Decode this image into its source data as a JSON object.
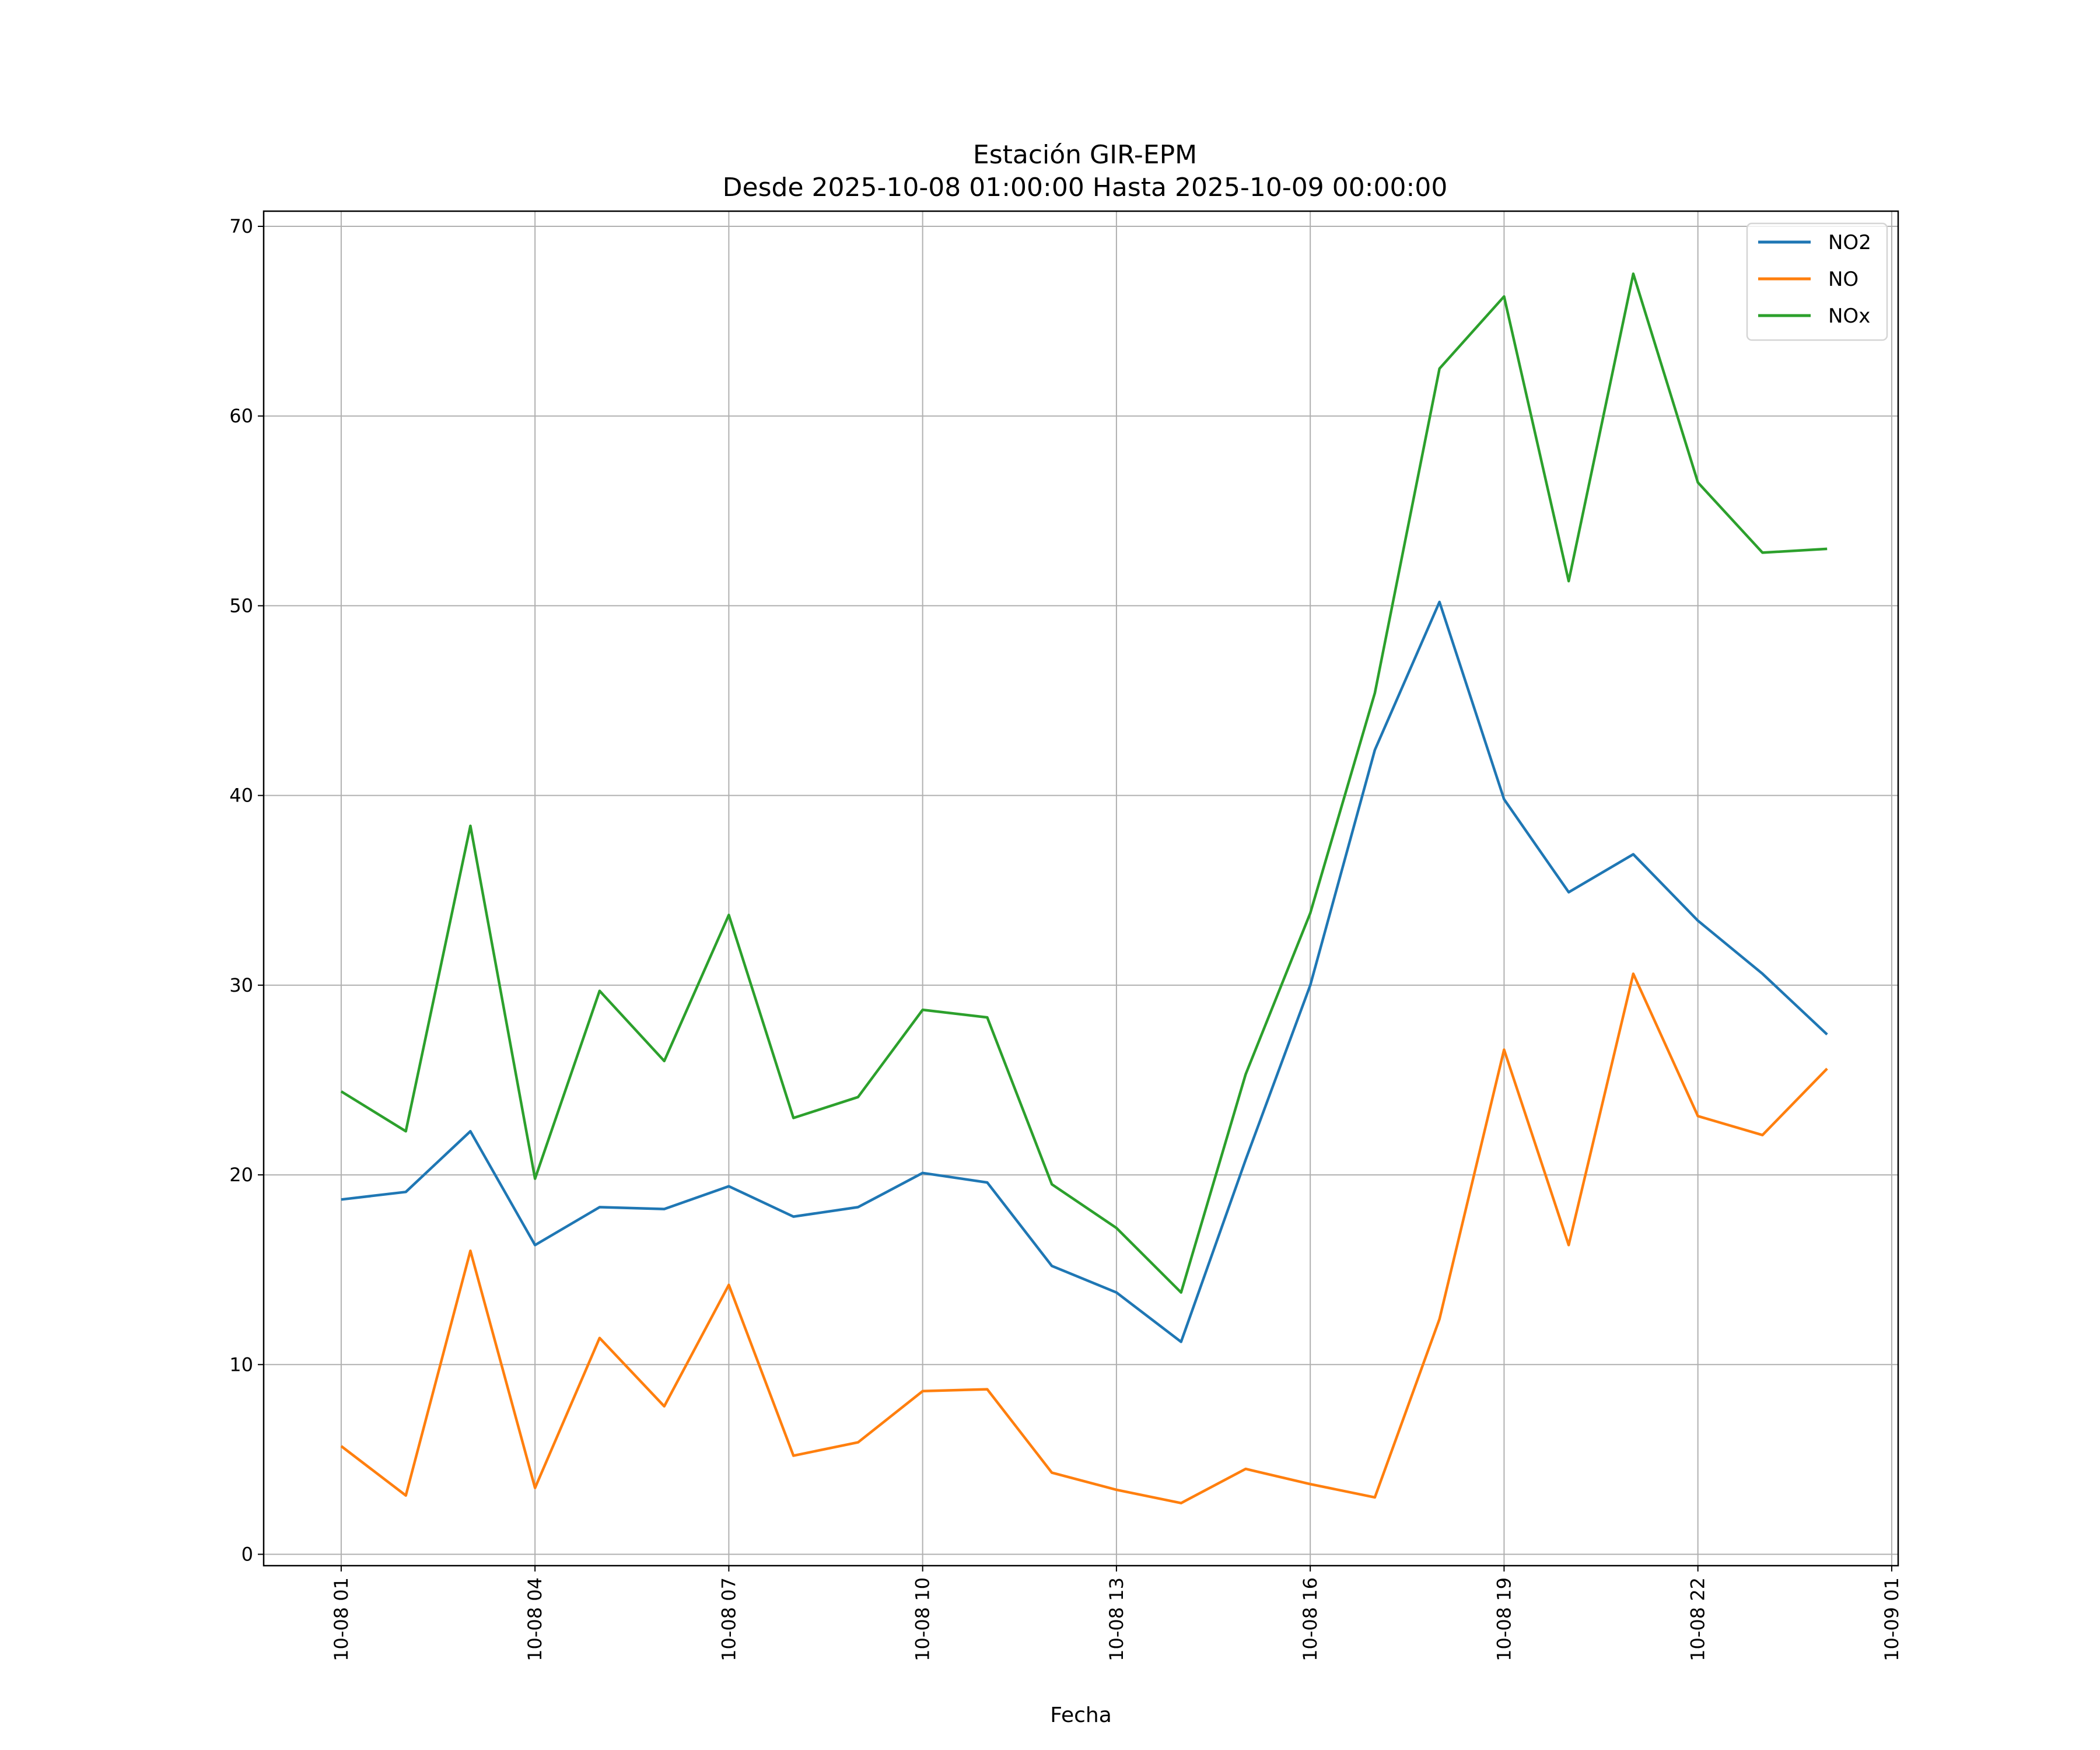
{
  "chart_data": {
    "type": "line",
    "title": "Estación GIR-EPM",
    "subtitle": "Desde 2025-10-08 01:00:00 Hasta 2025-10-09 00:00:00",
    "xlabel": "Fecha",
    "ylabel": "",
    "x_hours": [
      1,
      2,
      3,
      4,
      5,
      6,
      7,
      8,
      9,
      10,
      11,
      12,
      13,
      14,
      15,
      16,
      17,
      18,
      19,
      20,
      21,
      22,
      23,
      24
    ],
    "xlim_hours": [
      -0.2,
      25.1
    ],
    "ylim": [
      -0.6,
      70.8
    ],
    "yticks": [
      0,
      10,
      20,
      30,
      40,
      50,
      60,
      70
    ],
    "xticks": [
      {
        "hour": 1,
        "label": "10-08 01"
      },
      {
        "hour": 4,
        "label": "10-08 04"
      },
      {
        "hour": 7,
        "label": "10-08 07"
      },
      {
        "hour": 10,
        "label": "10-08 10"
      },
      {
        "hour": 13,
        "label": "10-08 13"
      },
      {
        "hour": 16,
        "label": "10-08 16"
      },
      {
        "hour": 19,
        "label": "10-08 19"
      },
      {
        "hour": 22,
        "label": "10-08 22"
      },
      {
        "hour": 25,
        "label": "10-09 01"
      }
    ],
    "grid": true,
    "legend_position": "top-right",
    "series": [
      {
        "name": "NO2",
        "color": "#1f77b4",
        "values": [
          18.7,
          19.1,
          22.3,
          16.3,
          18.3,
          18.2,
          19.4,
          17.8,
          18.3,
          20.1,
          19.6,
          15.2,
          13.8,
          11.2,
          20.8,
          30.0,
          42.4,
          50.2,
          39.8,
          34.9,
          36.9,
          33.4,
          30.6,
          27.4
        ]
      },
      {
        "name": "NO",
        "color": "#ff7f0e",
        "values": [
          5.7,
          3.1,
          16.0,
          3.5,
          11.4,
          7.8,
          14.2,
          5.2,
          5.9,
          8.6,
          8.7,
          4.3,
          3.4,
          2.7,
          4.5,
          3.7,
          3.0,
          12.4,
          26.6,
          16.3,
          30.6,
          23.1,
          22.1,
          25.6
        ]
      },
      {
        "name": "NOx",
        "color": "#2ca02c",
        "values": [
          24.4,
          22.3,
          38.4,
          19.8,
          29.7,
          26.0,
          33.7,
          23.0,
          24.1,
          28.7,
          28.3,
          19.5,
          17.2,
          13.8,
          25.3,
          33.8,
          45.4,
          62.5,
          66.3,
          51.3,
          67.5,
          56.5,
          52.8,
          53.0
        ]
      }
    ]
  }
}
